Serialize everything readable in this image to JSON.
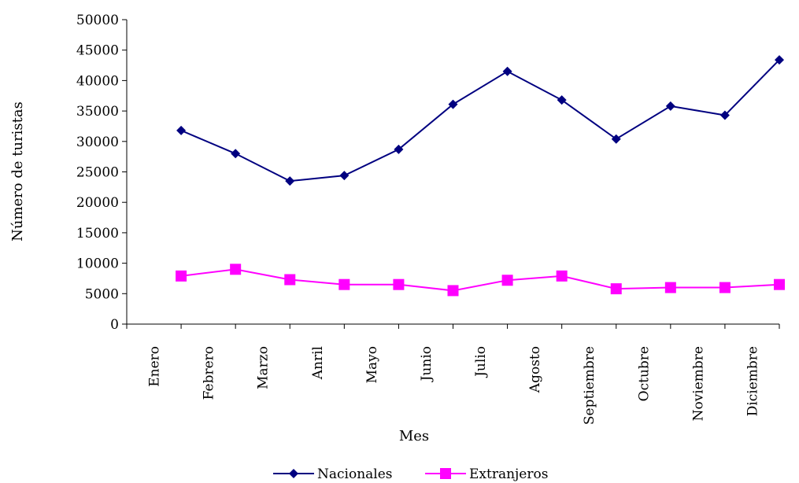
{
  "chart_data": {
    "type": "line",
    "title": "",
    "xlabel": "Mes",
    "ylabel": "Número de turistas",
    "ylim": [
      0,
      50000
    ],
    "yticks": [
      0,
      5000,
      10000,
      15000,
      20000,
      25000,
      30000,
      35000,
      40000,
      45000,
      50000
    ],
    "categories": [
      "Enero",
      "Febrero",
      "Marzo",
      "Anril",
      "Mayo",
      "Junio",
      "Julio",
      "Agosto",
      "Septiembre",
      "Octubre",
      "Noviembre",
      "Diciembre"
    ],
    "grid": false,
    "legend_position": "bottom",
    "series": [
      {
        "name": "Nacionales",
        "color": "#000080",
        "marker": "diamond",
        "values": [
          31800,
          28000,
          23500,
          24400,
          28700,
          36100,
          41500,
          36800,
          30400,
          35800,
          34300,
          43400
        ]
      },
      {
        "name": "Extranjeros",
        "color": "#FF00FF",
        "marker": "square",
        "values": [
          7900,
          9000,
          7300,
          6500,
          6500,
          5500,
          7200,
          7900,
          5800,
          6000,
          6000,
          6500
        ]
      }
    ]
  }
}
